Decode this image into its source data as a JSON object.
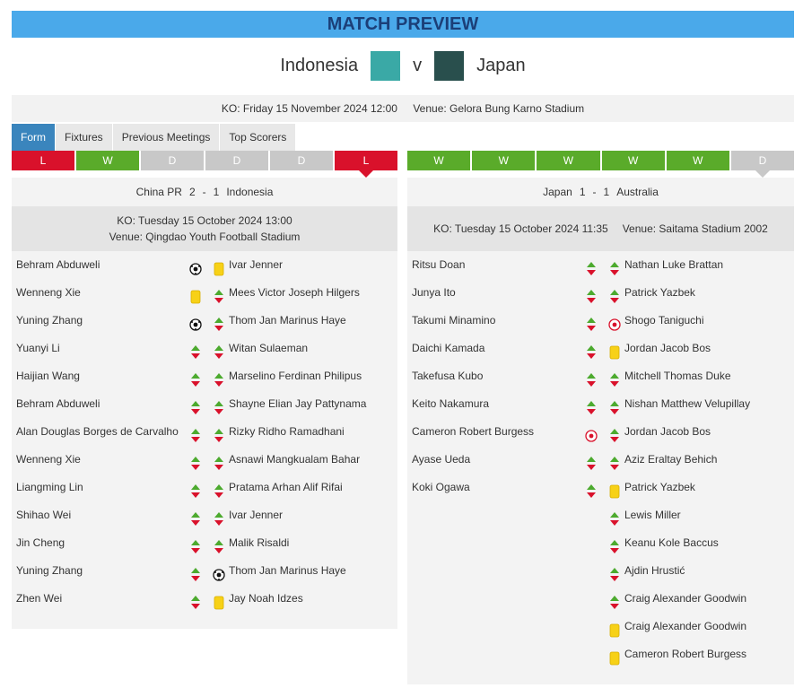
{
  "header": {
    "title": "MATCH PREVIEW",
    "home_team": "Indonesia",
    "separator": "v",
    "away_team": "Japan",
    "kickoff": "KO: Friday 15 November 2024 12:00",
    "venue": "Venue: Gelora Bung Karno Stadium"
  },
  "tabs": [
    "Form",
    "Fixtures",
    "Previous Meetings",
    "Top Scorers"
  ],
  "form": {
    "home": [
      "L",
      "W",
      "D",
      "D",
      "D",
      "L"
    ],
    "away": [
      "W",
      "W",
      "W",
      "W",
      "W",
      "D"
    ]
  },
  "matches": [
    {
      "home": "China PR",
      "home_score": 2,
      "separator": "-",
      "away_score": 1,
      "away": "Indonesia",
      "kickoff": "KO: Tuesday 15 October 2024 13:00",
      "venue": "Venue: Qingdao Youth Football Stadium",
      "home_events": [
        "Behram Abduweli",
        "Wenneng Xie",
        "Yuning Zhang",
        "Yuanyi Li",
        "Haijian Wang",
        "Behram Abduweli",
        "Alan Douglas Borges de Carvalho",
        "Wenneng Xie",
        "Liangming Lin",
        "Shihao Wei",
        "Jin Cheng",
        "Yuning Zhang",
        "Zhen Wei"
      ],
      "away_events": [
        "Ivar Jenner",
        "Mees Victor Joseph Hilgers",
        "Thom Jan Marinus Haye",
        "Witan Sulaeman",
        "Marselino Ferdinan Philipus",
        "Shayne Elian Jay Pattynama",
        "Rizky Ridho Ramadhani",
        "Asnawi Mangkualam Bahar",
        "Pratama Arhan Alif Rifai",
        "Ivar Jenner",
        "Malik Risaldi",
        "Thom Jan Marinus Haye",
        "Jay Noah Idzes"
      ]
    },
    {
      "home": "Japan",
      "home_score": 1,
      "separator": "-",
      "away_score": 1,
      "away": "Australia",
      "kickoff": "KO: Tuesday 15 October 2024 11:35",
      "venue": "Venue: Saitama Stadium 2002",
      "home_events": [
        "Ritsu Doan",
        "Junya Ito",
        "Takumi Minamino",
        "Daichi Kamada",
        "Takefusa Kubo",
        "Keito Nakamura",
        "Cameron Robert Burgess",
        "Ayase Ueda",
        "Koki Ogawa"
      ],
      "away_events": [
        "Nathan Luke Brattan",
        "Patrick Yazbek",
        "Shogo Taniguchi",
        "Jordan Jacob Bos",
        "Mitchell Thomas Duke",
        "Nishan Matthew Velupillay",
        "Jordan Jacob Bos",
        "Aziz Eraltay Behich",
        "Patrick Yazbek",
        "Lewis Miller",
        "Keanu Kole Baccus",
        "Ajdin Hrustić",
        "Craig Alexander Goodwin",
        "Craig Alexander Goodwin",
        "Cameron Robert Burgess"
      ]
    }
  ]
}
